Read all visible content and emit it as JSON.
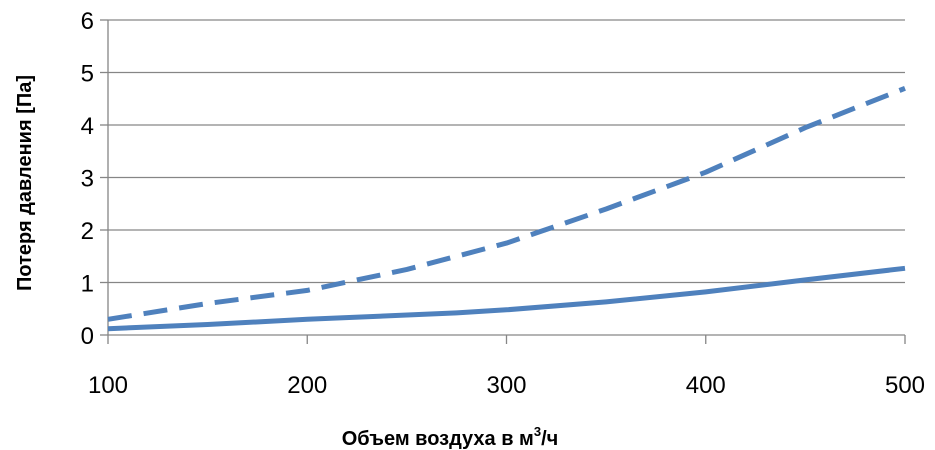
{
  "colors": {
    "series": "#4f81bd",
    "grid": "#868686",
    "axis": "#868686"
  },
  "chart_data": {
    "type": "line",
    "title": "",
    "xlabel_main": "Объем воздуха в м",
    "xlabel_sup": "3",
    "xlabel_tail": "/ч",
    "ylabel": "Потеря давления [Па]",
    "xlim": [
      100,
      500
    ],
    "ylim": [
      0,
      6
    ],
    "x_ticks": [
      "100",
      "200",
      "300",
      "400",
      "500"
    ],
    "y_ticks": [
      "0",
      "1",
      "2",
      "3",
      "4",
      "5",
      "6"
    ],
    "grid": "horizontal",
    "legend": "none",
    "series": [
      {
        "style": "dashed",
        "x": [
          100,
          150,
          200,
          250,
          300,
          350,
          400,
          450,
          500
        ],
        "y": [
          0.3,
          0.6,
          0.85,
          1.25,
          1.75,
          2.4,
          3.1,
          3.95,
          4.7
        ]
      },
      {
        "style": "solid",
        "x": [
          100,
          150,
          200,
          275,
          300,
          350,
          400,
          450,
          500
        ],
        "y": [
          0.12,
          0.2,
          0.3,
          0.42,
          0.48,
          0.63,
          0.82,
          1.05,
          1.27
        ]
      }
    ]
  }
}
